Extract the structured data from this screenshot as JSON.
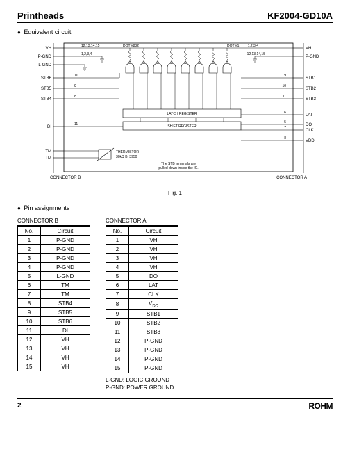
{
  "header": {
    "left": "Printheads",
    "right": "KF2004-GD10A"
  },
  "sections": {
    "equiv": "Equivalent circuit",
    "pins": "Pin assignments"
  },
  "figCaption": "Fig. 1",
  "diagram": {
    "leftLabels": [
      "VH",
      "P-GND",
      "L-GND",
      "STB6",
      "STB5",
      "STB4",
      "DI",
      "TM",
      "TM"
    ],
    "rightLabels": [
      "VH",
      "P-GND",
      "STB1",
      "STB2",
      "STB3",
      "LAT",
      "DO",
      "CLK",
      "VDD"
    ],
    "topText": {
      "a": "12,13,14,15",
      "b": "1,2,3,4",
      "c": "DOT #832",
      "d": "DOT #1",
      "e": "1,2,3,4",
      "f": "12,13,14,15"
    },
    "pinNums": {
      "l1": "10",
      "l2": "9",
      "l3": "8",
      "l4": "11",
      "r1": "9",
      "r2": "10",
      "r3": "11",
      "r4": "6",
      "r5": "5",
      "r6": "7",
      "r7": "8"
    },
    "blocks": {
      "latch": "LATCH  REGISTER",
      "shift": "SHIFT  REGISTER"
    },
    "therm": {
      "label": "THERMISTOR",
      "spec": "30kΩ  B: 3950"
    },
    "note": {
      "l1": "The STB terminals are",
      "l2": "pulled down inside the IC."
    },
    "connLabels": {
      "b": "CONNECTOR B",
      "a": "CONNECTOR A"
    }
  },
  "tableB": {
    "caption": "CONNECTOR B",
    "head": [
      "No.",
      "Circuit"
    ],
    "rows": [
      [
        "1",
        "P-GND"
      ],
      [
        "2",
        "P-GND"
      ],
      [
        "3",
        "P-GND"
      ],
      [
        "4",
        "P-GND"
      ],
      [
        "5",
        "L-GND"
      ],
      [
        "6",
        "TM"
      ],
      [
        "7",
        "TM"
      ],
      [
        "8",
        "STB4"
      ],
      [
        "9",
        "STB5"
      ],
      [
        "10",
        "STB6"
      ],
      [
        "11",
        "DI"
      ],
      [
        "12",
        "VH"
      ],
      [
        "13",
        "VH"
      ],
      [
        "14",
        "VH"
      ],
      [
        "15",
        "VH"
      ]
    ]
  },
  "tableA": {
    "caption": "CONNECTOR A",
    "head": [
      "No.",
      "Circuit"
    ],
    "rows": [
      [
        "1",
        "VH"
      ],
      [
        "2",
        "VH"
      ],
      [
        "3",
        "VH"
      ],
      [
        "4",
        "VH"
      ],
      [
        "5",
        "DO"
      ],
      [
        "6",
        "LAT"
      ],
      [
        "7",
        "CLK"
      ],
      [
        "8",
        "VDD"
      ],
      [
        "9",
        "STB1"
      ],
      [
        "10",
        "STB2"
      ],
      [
        "11",
        "STB3"
      ],
      [
        "12",
        "P-GND"
      ],
      [
        "13",
        "P-GND"
      ],
      [
        "14",
        "P-GND"
      ],
      [
        "15",
        "P-GND"
      ]
    ],
    "vddRow": 7
  },
  "legend": {
    "l1": "L-GND: LOGIC GROUND",
    "l2": "P-GND: POWER GROUND"
  },
  "footer": {
    "page": "2",
    "brand": "ROHM"
  }
}
